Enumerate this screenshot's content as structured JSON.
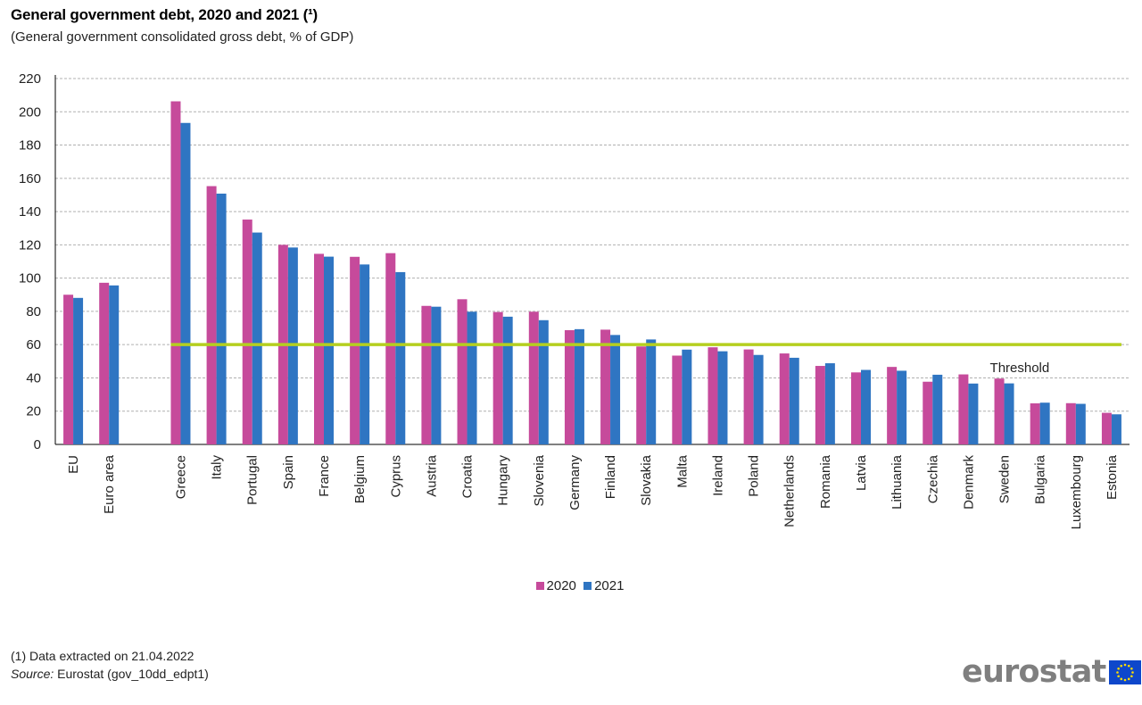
{
  "title": "General government debt, 2020 and 2021 (¹)",
  "subtitle": "(General  government  consolidated gross debt, % of GDP)",
  "footnote": "(1) Data extracted on 21.04.2022",
  "source_label": "Source:",
  "source_text": "Eurostat (gov_10dd_edpt1)",
  "logo_text": "eurostat",
  "colors": {
    "series_2020": "#c64a9b",
    "series_2021": "#2f75c2",
    "threshold": "#b5cf1f",
    "grid": "#b0b0b0",
    "axis": "#000000"
  },
  "chart_data": {
    "type": "bar",
    "title": "General government debt, 2020 and 2021 (¹)",
    "subtitle": "(General  government  consolidated gross debt, % of GDP)",
    "ylim": [
      0,
      220
    ],
    "yticks": [
      0,
      20,
      40,
      60,
      80,
      100,
      120,
      140,
      160,
      180,
      200,
      220
    ],
    "grid": true,
    "legend_position": "bottom-center",
    "categories": [
      "EU",
      "Euro area",
      "",
      "Greece",
      "Italy",
      "Portugal",
      "Spain",
      "France",
      "Belgium",
      "Cyprus",
      "Austria",
      "Croatia",
      "Hungary",
      "Slovenia",
      "Germany",
      "Finland",
      "Slovakia",
      "Malta",
      "Ireland",
      "Poland",
      "Netherlands",
      "Romania",
      "Latvia",
      "Lithuania",
      "Czechia",
      "Denmark",
      "Sweden",
      "Bulgaria",
      "Luxembourg",
      "Estonia"
    ],
    "series": [
      {
        "name": "2020",
        "values": [
          90.0,
          97.2,
          null,
          206.3,
          155.3,
          135.2,
          120.0,
          114.6,
          112.8,
          115.0,
          83.3,
          87.3,
          79.6,
          79.8,
          68.7,
          69.0,
          58.9,
          53.4,
          58.4,
          57.1,
          54.7,
          47.2,
          43.3,
          46.6,
          37.7,
          42.1,
          39.6,
          24.7,
          24.8,
          19.0
        ]
      },
      {
        "name": "2021",
        "values": [
          88.1,
          95.6,
          null,
          193.3,
          150.8,
          127.4,
          118.4,
          112.9,
          108.2,
          103.6,
          82.8,
          79.8,
          76.8,
          74.7,
          69.3,
          65.8,
          63.1,
          57.0,
          56.0,
          53.8,
          52.1,
          48.8,
          44.8,
          44.3,
          41.9,
          36.6,
          36.7,
          25.1,
          24.4,
          18.1
        ]
      }
    ],
    "threshold": {
      "label": "Threshold",
      "value": 60,
      "from_category": "Greece",
      "to_category": "Estonia"
    }
  }
}
